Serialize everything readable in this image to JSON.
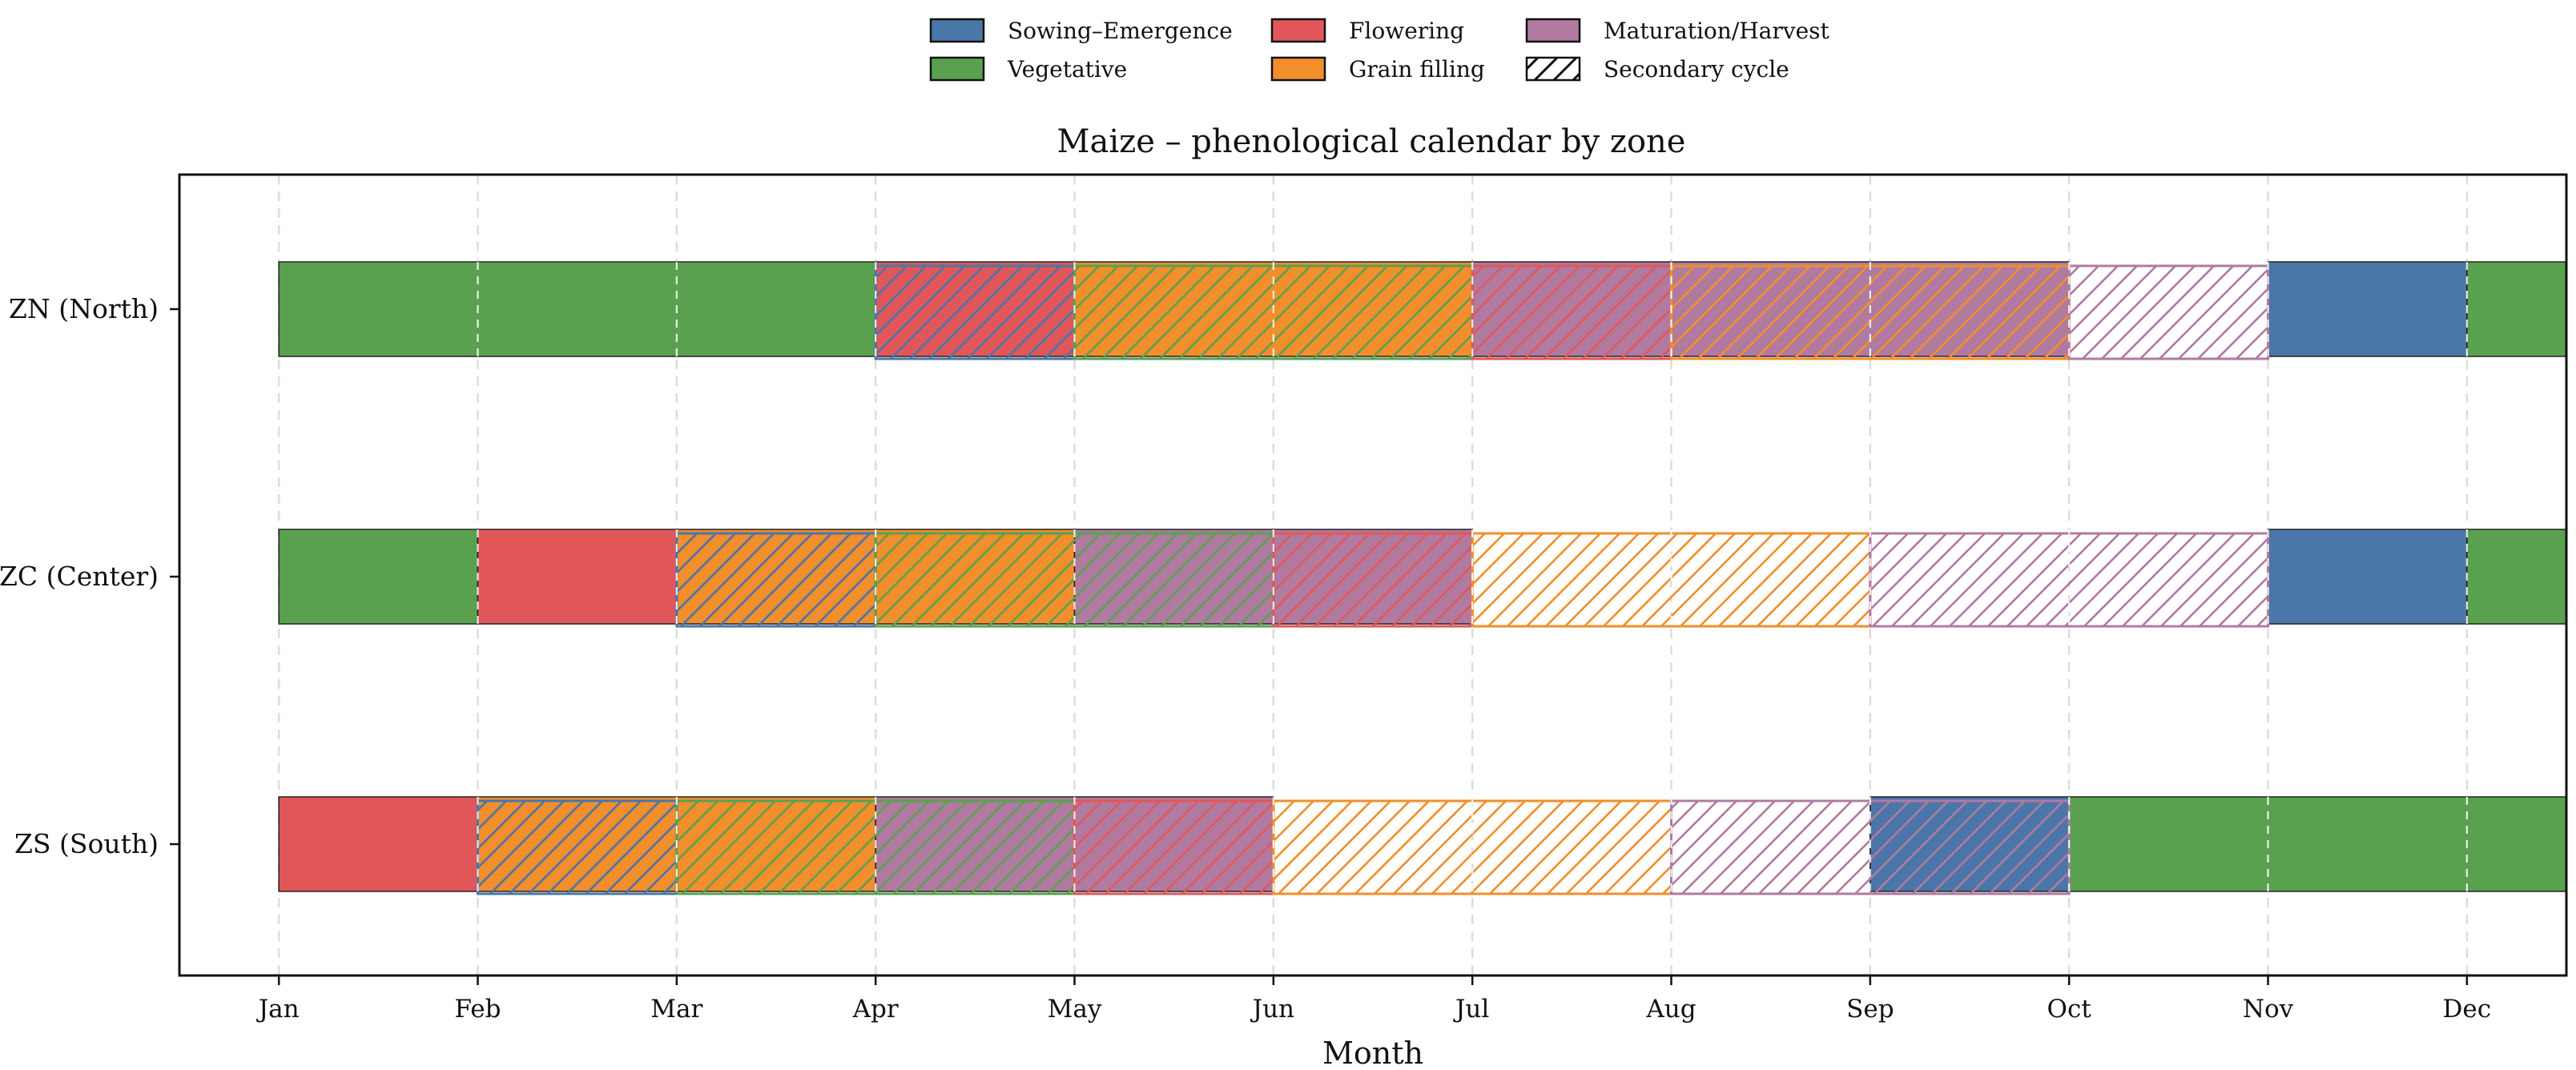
{
  "chart_data": {
    "type": "gantt",
    "title": "Maize – phenological calendar by zone",
    "xlabel": "Month",
    "ylabel": "",
    "x_unit": "month index (0 = Jan start, 1 = Feb start, ...)",
    "xlim": [
      -0.5,
      11.5
    ],
    "months": [
      "Jan",
      "Feb",
      "Mar",
      "Apr",
      "May",
      "Jun",
      "Jul",
      "Aug",
      "Sep",
      "Oct",
      "Nov",
      "Dec"
    ],
    "zones": [
      "ZN (North)",
      "ZC (Center)",
      "ZS (South)"
    ],
    "legend_position": "top-center",
    "phases": [
      {
        "key": "sowing",
        "name": "Sowing–Emergence",
        "color": "#4a76a8"
      },
      {
        "key": "vegetative",
        "name": "Vegetative",
        "color": "#59a14f"
      },
      {
        "key": "flowering",
        "name": "Flowering",
        "color": "#e15759"
      },
      {
        "key": "grain",
        "name": "Grain filling",
        "color": "#f28e2b"
      },
      {
        "key": "maturation",
        "name": "Maturation/Harvest",
        "color": "#b07aa1"
      }
    ],
    "secondary_label": "Secondary cycle",
    "main_cycle": {
      "ZN (North)": [
        {
          "phase": "vegetative",
          "start": 0,
          "end": 3
        },
        {
          "phase": "flowering",
          "start": 3,
          "end": 4
        },
        {
          "phase": "grain",
          "start": 4,
          "end": 6
        },
        {
          "phase": "maturation",
          "start": 6,
          "end": 9
        },
        {
          "phase": "sowing",
          "start": 10,
          "end": 11
        },
        {
          "phase": "vegetative",
          "start": 11,
          "end": 12
        }
      ],
      "ZC (Center)": [
        {
          "phase": "vegetative",
          "start": 0,
          "end": 1
        },
        {
          "phase": "flowering",
          "start": 1,
          "end": 2
        },
        {
          "phase": "grain",
          "start": 2,
          "end": 4
        },
        {
          "phase": "maturation",
          "start": 4,
          "end": 6
        },
        {
          "phase": "sowing",
          "start": 10,
          "end": 11
        },
        {
          "phase": "vegetative",
          "start": 11,
          "end": 12
        }
      ],
      "ZS (South)": [
        {
          "phase": "flowering",
          "start": 0,
          "end": 1
        },
        {
          "phase": "grain",
          "start": 1,
          "end": 3
        },
        {
          "phase": "maturation",
          "start": 3,
          "end": 5
        },
        {
          "phase": "sowing",
          "start": 8,
          "end": 9
        },
        {
          "phase": "vegetative",
          "start": 9,
          "end": 12
        }
      ]
    },
    "secondary_cycle": {
      "ZN (North)": [
        {
          "phase": "sowing",
          "start": 3,
          "end": 4
        },
        {
          "phase": "vegetative",
          "start": 4,
          "end": 6
        },
        {
          "phase": "flowering",
          "start": 6,
          "end": 7
        },
        {
          "phase": "grain",
          "start": 7,
          "end": 9
        },
        {
          "phase": "maturation",
          "start": 9,
          "end": 10
        }
      ],
      "ZC (Center)": [
        {
          "phase": "sowing",
          "start": 2,
          "end": 3
        },
        {
          "phase": "vegetative",
          "start": 3,
          "end": 5
        },
        {
          "phase": "flowering",
          "start": 5,
          "end": 6
        },
        {
          "phase": "grain",
          "start": 6,
          "end": 8
        },
        {
          "phase": "maturation",
          "start": 8,
          "end": 10
        }
      ],
      "ZS (South)": [
        {
          "phase": "sowing",
          "start": 1,
          "end": 2
        },
        {
          "phase": "vegetative",
          "start": 2,
          "end": 4
        },
        {
          "phase": "flowering",
          "start": 4,
          "end": 5
        },
        {
          "phase": "grain",
          "start": 5,
          "end": 7
        },
        {
          "phase": "maturation",
          "start": 7,
          "end": 9
        }
      ]
    }
  }
}
